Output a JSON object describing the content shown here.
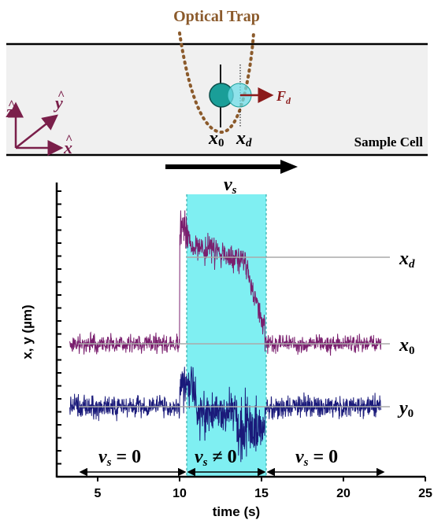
{
  "schematic": {
    "trap_label": "Optical Trap",
    "cell_label": "Sample Cell",
    "force_label": "F",
    "force_sub": "d",
    "velocity_label": "v",
    "velocity_sub": "s",
    "pos_x0_label": "x",
    "pos_x0_sub": "0",
    "pos_xd_label": "x",
    "pos_xd_sub": "d",
    "axis_z": "z",
    "axis_y": "y",
    "axis_x": "x",
    "hat": "^",
    "colors": {
      "trap": "#8B5A2B",
      "bead_fixed": "#1a9e98",
      "bead_displaced": "#6fdde8",
      "arrow": "#8B1A1A",
      "axes": "#7a1f4a",
      "cell_fill": "#f0f0f0"
    }
  },
  "chart_data": {
    "type": "line",
    "xlabel": "time (s)",
    "ylabel": "x, y (µm)",
    "xlim": [
      2.5,
      25
    ],
    "xticks": [
      5,
      10,
      15,
      20,
      25
    ],
    "highlight_region": {
      "from": 10,
      "to": 15,
      "color": "#7feff2"
    },
    "series": [
      {
        "name": "x_d",
        "color": "#7a1f6e"
      },
      {
        "name": "x_0",
        "color": "#7a1f6e"
      },
      {
        "name": "y_0",
        "color": "#1a1a7a"
      }
    ],
    "reference_labels": [
      {
        "text": "x",
        "sub": "d"
      },
      {
        "text": "x",
        "sub": "0"
      },
      {
        "text": "y",
        "sub": "0"
      }
    ],
    "region_labels": [
      {
        "v": "v",
        "sub": "s",
        "rel": "= 0"
      },
      {
        "v": "v",
        "sub": "s",
        "rel": "≠ 0"
      },
      {
        "v": "v",
        "sub": "s",
        "rel": "= 0"
      }
    ]
  }
}
